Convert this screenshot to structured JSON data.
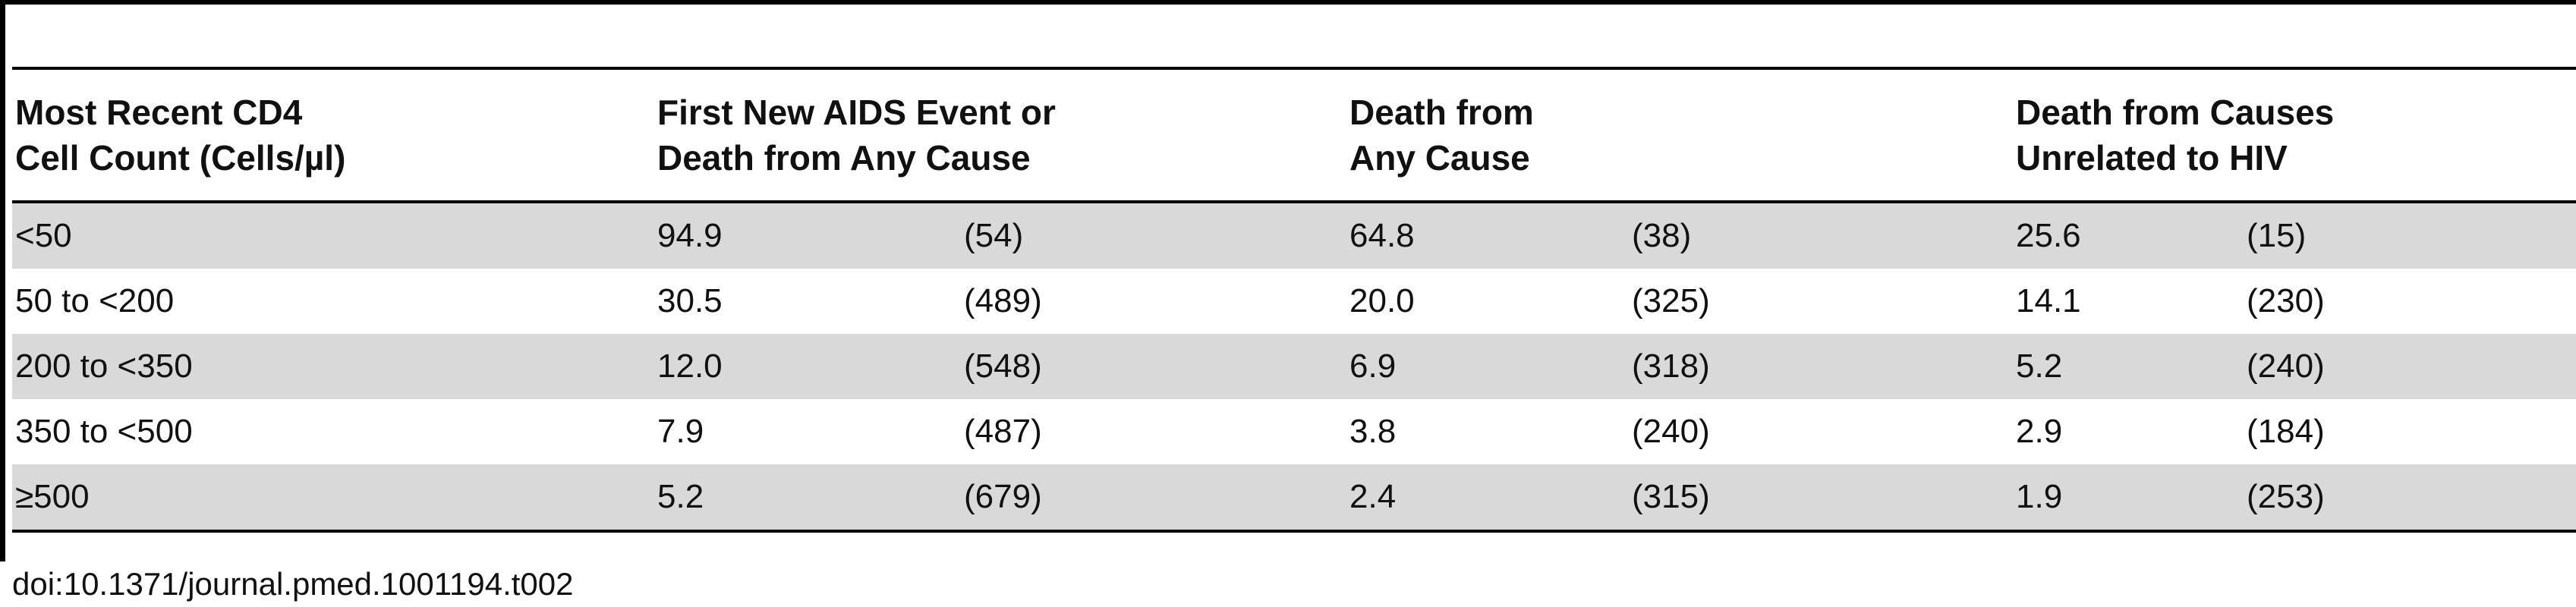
{
  "table": {
    "headers": {
      "cd4": [
        "Most Recent CD4",
        "Cell Count (Cells/µl)"
      ],
      "aids_or_death": [
        "First New AIDS Event or",
        "Death from Any Cause"
      ],
      "death_any": [
        "Death from",
        "Any Cause"
      ],
      "death_unrelated": [
        "Death from Causes",
        "Unrelated to HIV"
      ]
    },
    "rows": [
      {
        "cd4": "<50",
        "v1": "94.9",
        "n1": "(54)",
        "v2": "64.8",
        "n2": "(38)",
        "v3": "25.6",
        "n3": "(15)"
      },
      {
        "cd4": "50 to <200",
        "v1": "30.5",
        "n1": "(489)",
        "v2": "20.0",
        "n2": "(325)",
        "v3": "14.1",
        "n3": "(230)"
      },
      {
        "cd4": "200 to <350",
        "v1": "12.0",
        "n1": "(548)",
        "v2": "6.9",
        "n2": "(318)",
        "v3": "5.2",
        "n3": "(240)"
      },
      {
        "cd4": "350 to <500",
        "v1": "7.9",
        "n1": "(487)",
        "v2": "3.8",
        "n2": "(240)",
        "v3": "2.9",
        "n3": "(184)"
      },
      {
        "cd4": "≥500",
        "v1": "5.2",
        "n1": "(679)",
        "v2": "2.4",
        "n2": "(315)",
        "v3": "1.9",
        "n3": "(253)"
      }
    ]
  },
  "doi": "doi:10.1371/journal.pmed.1001194.t002"
}
